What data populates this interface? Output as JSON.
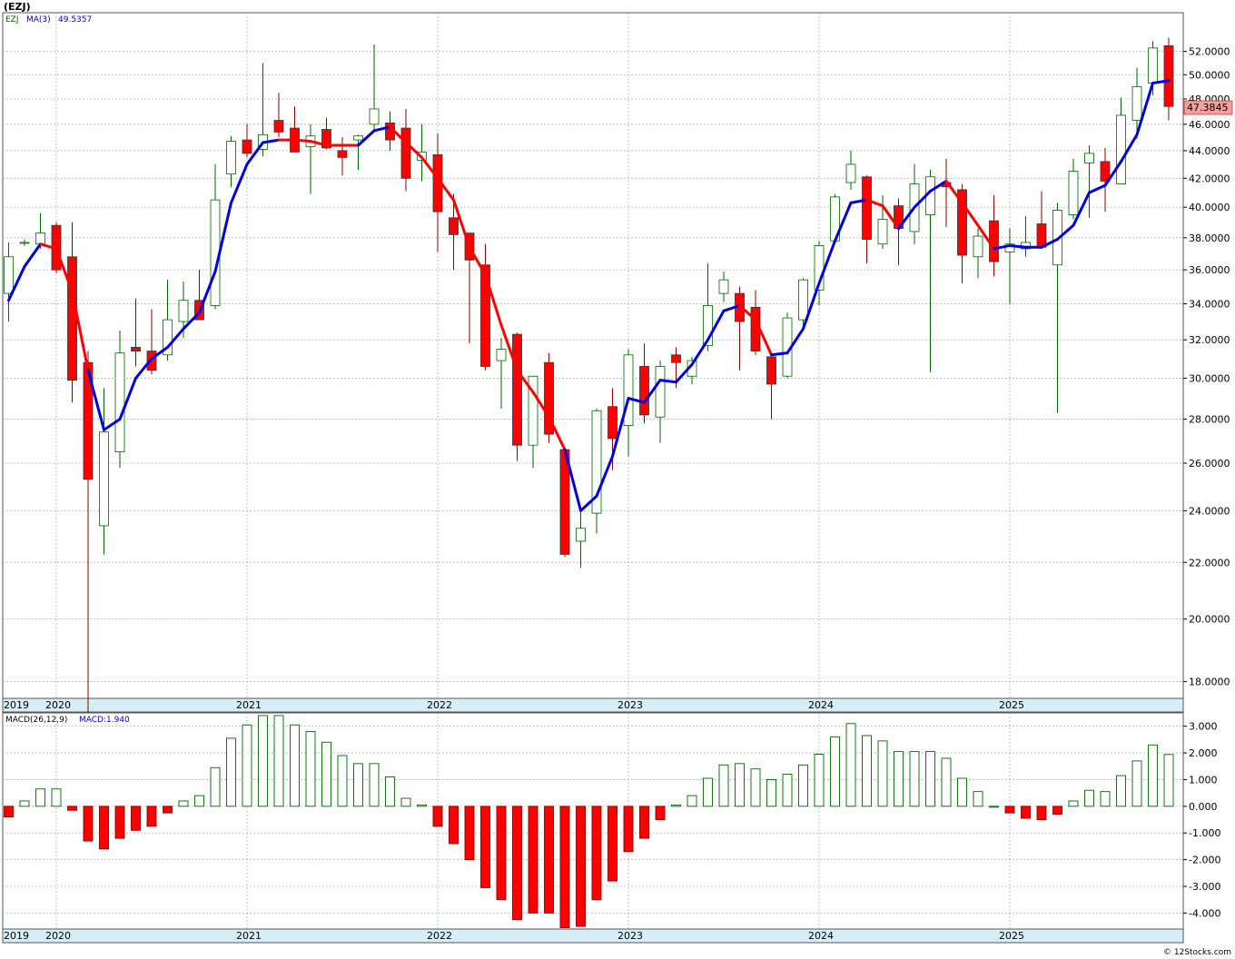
{
  "symbol_header": "(EZJ)",
  "credit": "© 12Stocks.com",
  "colors": {
    "up": "#006400",
    "down": "#ff0000",
    "ma_up": "#0000dd",
    "ma_down": "#ff0000",
    "grid": "#b0b0b0",
    "axis_band": "#d6eef8"
  },
  "chart_data": [
    {
      "type": "candlestick",
      "legend": {
        "ticker": "EZJ",
        "ma_label": "MA(3)",
        "ma_value": "49.5357"
      },
      "y_scale": "log",
      "ylim": [
        17.5,
        55.5
      ],
      "y_ticks": [
        18,
        20,
        22,
        24,
        26,
        28,
        30,
        32,
        34,
        36,
        38,
        40,
        42,
        44,
        46,
        48,
        50,
        52
      ],
      "y_tick_labels": [
        "18.0000",
        "20.0000",
        "22.0000",
        "24.0000",
        "26.0000",
        "28.0000",
        "30.0000",
        "32.0000",
        "34.0000",
        "36.0000",
        "38.0000",
        "40.0000",
        "42.0000",
        "44.0000",
        "46.0000",
        "48.0000",
        "50.0000",
        "52.0000"
      ],
      "last_price_label": "47.3845",
      "last_price": 47.3845,
      "x_labels": [
        "2019",
        "2020",
        "2021",
        "2022",
        "2023",
        "2024",
        "2025"
      ],
      "x_label_months": [
        0,
        3,
        15,
        27,
        39,
        51,
        63
      ],
      "candles": [
        {
          "o": 34.6,
          "h": 37.7,
          "l": 33.0,
          "c": 36.8
        },
        {
          "o": 37.7,
          "h": 37.9,
          "l": 37.5,
          "c": 37.7
        },
        {
          "o": 37.6,
          "h": 39.6,
          "l": 37.3,
          "c": 38.3
        },
        {
          "o": 38.8,
          "h": 39.0,
          "l": 35.8,
          "c": 36.0
        },
        {
          "o": 36.8,
          "h": 39.0,
          "l": 28.8,
          "c": 29.9
        },
        {
          "o": 30.8,
          "h": 31.4,
          "l": 16.6,
          "c": 25.3
        },
        {
          "o": 23.4,
          "h": 29.5,
          "l": 22.3,
          "c": 27.4
        },
        {
          "o": 26.5,
          "h": 32.5,
          "l": 25.8,
          "c": 31.3
        },
        {
          "o": 31.6,
          "h": 34.3,
          "l": 30.6,
          "c": 31.4
        },
        {
          "o": 31.4,
          "h": 33.7,
          "l": 30.2,
          "c": 30.4
        },
        {
          "o": 31.2,
          "h": 35.4,
          "l": 30.9,
          "c": 33.1
        },
        {
          "o": 33.0,
          "h": 35.3,
          "l": 32.1,
          "c": 34.2
        },
        {
          "o": 34.2,
          "h": 36.0,
          "l": 33.2,
          "c": 33.1
        },
        {
          "o": 33.9,
          "h": 43.0,
          "l": 33.7,
          "c": 40.5
        },
        {
          "o": 42.3,
          "h": 45.1,
          "l": 41.4,
          "c": 44.7
        },
        {
          "o": 44.8,
          "h": 46.0,
          "l": 43.5,
          "c": 43.8
        },
        {
          "o": 44.1,
          "h": 51.0,
          "l": 43.6,
          "c": 45.2
        },
        {
          "o": 46.3,
          "h": 48.5,
          "l": 45.0,
          "c": 45.4
        },
        {
          "o": 45.7,
          "h": 47.4,
          "l": 43.9,
          "c": 43.9
        },
        {
          "o": 44.3,
          "h": 46.0,
          "l": 40.9,
          "c": 45.1
        },
        {
          "o": 45.6,
          "h": 46.5,
          "l": 44.1,
          "c": 44.2
        },
        {
          "o": 44.0,
          "h": 45.0,
          "l": 42.2,
          "c": 43.5
        },
        {
          "o": 44.8,
          "h": 45.2,
          "l": 42.6,
          "c": 45.1
        },
        {
          "o": 46.0,
          "h": 52.6,
          "l": 45.6,
          "c": 47.2
        },
        {
          "o": 46.1,
          "h": 47.0,
          "l": 44.0,
          "c": 44.8
        },
        {
          "o": 45.7,
          "h": 47.2,
          "l": 41.1,
          "c": 42.0
        },
        {
          "o": 43.3,
          "h": 46.0,
          "l": 41.8,
          "c": 43.9
        },
        {
          "o": 43.7,
          "h": 45.3,
          "l": 37.1,
          "c": 39.7
        },
        {
          "o": 39.3,
          "h": 40.9,
          "l": 36.0,
          "c": 38.2
        },
        {
          "o": 38.3,
          "h": 38.3,
          "l": 31.8,
          "c": 36.6
        },
        {
          "o": 36.3,
          "h": 37.6,
          "l": 30.4,
          "c": 30.6
        },
        {
          "o": 30.9,
          "h": 32.1,
          "l": 28.5,
          "c": 31.5
        },
        {
          "o": 32.3,
          "h": 32.4,
          "l": 26.1,
          "c": 26.8
        },
        {
          "o": 26.8,
          "h": 30.1,
          "l": 25.8,
          "c": 30.1
        },
        {
          "o": 30.8,
          "h": 31.3,
          "l": 26.9,
          "c": 27.3
        },
        {
          "o": 26.6,
          "h": 26.6,
          "l": 22.2,
          "c": 22.3
        },
        {
          "o": 22.8,
          "h": 24.0,
          "l": 21.8,
          "c": 23.3
        },
        {
          "o": 23.9,
          "h": 28.5,
          "l": 23.1,
          "c": 28.4
        },
        {
          "o": 28.6,
          "h": 29.5,
          "l": 25.7,
          "c": 27.1
        },
        {
          "o": 27.7,
          "h": 31.5,
          "l": 26.3,
          "c": 31.2
        },
        {
          "o": 30.6,
          "h": 31.8,
          "l": 27.8,
          "c": 28.2
        },
        {
          "o": 28.1,
          "h": 30.9,
          "l": 26.9,
          "c": 30.6
        },
        {
          "o": 31.2,
          "h": 31.6,
          "l": 29.5,
          "c": 30.8
        },
        {
          "o": 30.1,
          "h": 31.1,
          "l": 29.7,
          "c": 30.9
        },
        {
          "o": 31.7,
          "h": 36.4,
          "l": 31.4,
          "c": 33.9
        },
        {
          "o": 34.6,
          "h": 35.9,
          "l": 34.1,
          "c": 35.4
        },
        {
          "o": 34.6,
          "h": 35.0,
          "l": 30.4,
          "c": 33.0
        },
        {
          "o": 33.8,
          "h": 34.8,
          "l": 31.2,
          "c": 31.4
        },
        {
          "o": 31.1,
          "h": 31.1,
          "l": 28.0,
          "c": 29.7
        },
        {
          "o": 30.1,
          "h": 33.5,
          "l": 30.0,
          "c": 33.2
        },
        {
          "o": 33.1,
          "h": 35.5,
          "l": 32.6,
          "c": 35.4
        },
        {
          "o": 34.8,
          "h": 37.8,
          "l": 33.9,
          "c": 37.5
        },
        {
          "o": 37.8,
          "h": 40.9,
          "l": 37.6,
          "c": 40.7
        },
        {
          "o": 41.7,
          "h": 44.0,
          "l": 41.2,
          "c": 43.0
        },
        {
          "o": 42.1,
          "h": 42.2,
          "l": 36.4,
          "c": 37.9
        },
        {
          "o": 37.6,
          "h": 40.8,
          "l": 37.3,
          "c": 39.2
        },
        {
          "o": 40.1,
          "h": 40.6,
          "l": 36.3,
          "c": 38.6
        },
        {
          "o": 38.4,
          "h": 43.0,
          "l": 37.6,
          "c": 41.6
        },
        {
          "o": 39.5,
          "h": 42.6,
          "l": 30.3,
          "c": 42.1
        },
        {
          "o": 41.7,
          "h": 43.4,
          "l": 38.7,
          "c": 41.4
        },
        {
          "o": 41.2,
          "h": 41.6,
          "l": 35.2,
          "c": 36.9
        },
        {
          "o": 36.8,
          "h": 38.6,
          "l": 35.5,
          "c": 38.1
        },
        {
          "o": 39.1,
          "h": 40.8,
          "l": 35.6,
          "c": 36.5
        },
        {
          "o": 37.1,
          "h": 38.6,
          "l": 34.0,
          "c": 37.6
        },
        {
          "o": 37.3,
          "h": 39.4,
          "l": 36.8,
          "c": 37.7
        },
        {
          "o": 38.9,
          "h": 41.1,
          "l": 37.3,
          "c": 37.4
        },
        {
          "o": 36.3,
          "h": 40.3,
          "l": 28.3,
          "c": 39.8
        },
        {
          "o": 39.5,
          "h": 43.4,
          "l": 39.2,
          "c": 42.5
        },
        {
          "o": 43.1,
          "h": 44.4,
          "l": 39.3,
          "c": 43.8
        },
        {
          "o": 43.2,
          "h": 44.2,
          "l": 39.7,
          "c": 41.8
        },
        {
          "o": 41.6,
          "h": 48.1,
          "l": 41.6,
          "c": 46.7
        },
        {
          "o": 46.3,
          "h": 50.6,
          "l": 44.9,
          "c": 49.0
        },
        {
          "o": 49.3,
          "h": 52.9,
          "l": 48.3,
          "c": 52.3
        },
        {
          "o": 52.5,
          "h": 53.2,
          "l": 46.3,
          "c": 47.4
        }
      ],
      "ma3": [
        34.2,
        36.2,
        37.6,
        37.3,
        34.7,
        30.4,
        27.5,
        28.0,
        30.0,
        31.0,
        31.6,
        32.6,
        33.5,
        35.9,
        40.3,
        43.0,
        44.6,
        44.8,
        44.8,
        44.7,
        44.4,
        44.4,
        44.4,
        45.5,
        45.8,
        44.6,
        43.5,
        42.0,
        40.5,
        37.4,
        35.7,
        32.8,
        30.4,
        29.3,
        28.1,
        26.6,
        24.0,
        24.6,
        26.3,
        29.0,
        28.8,
        29.9,
        29.8,
        30.7,
        32.0,
        33.6,
        33.9,
        33.1,
        31.2,
        31.3,
        32.6,
        35.2,
        37.8,
        40.3,
        40.5,
        40.1,
        38.6,
        40.0,
        41.1,
        41.8,
        40.3,
        38.8,
        37.3,
        37.5,
        37.4,
        37.4,
        37.9,
        38.8,
        41.0,
        41.5,
        43.2,
        45.2,
        49.3,
        49.5
      ],
      "ma3_trend": [
        "u",
        "u",
        "u",
        "d",
        "d",
        "d",
        "u",
        "u",
        "u",
        "u",
        "u",
        "u",
        "u",
        "u",
        "u",
        "u",
        "u",
        "u",
        "d",
        "d",
        "d",
        "d",
        "d",
        "u",
        "u",
        "d",
        "d",
        "d",
        "d",
        "d",
        "d",
        "d",
        "d",
        "d",
        "d",
        "d",
        "u",
        "u",
        "u",
        "u",
        "u",
        "u",
        "u",
        "u",
        "u",
        "u",
        "u",
        "d",
        "d",
        "u",
        "u",
        "u",
        "u",
        "u",
        "u",
        "d",
        "d",
        "u",
        "u",
        "u",
        "d",
        "d",
        "d",
        "u",
        "u",
        "u",
        "u",
        "u",
        "u",
        "u",
        "u",
        "u",
        "u",
        "u"
      ]
    },
    {
      "type": "bar",
      "legend": {
        "label": "MACD(26,12,9)",
        "value_label": "MACD:1.940"
      },
      "ylim": [
        -4.6,
        3.5
      ],
      "y_ticks": [
        -4,
        -3,
        -2,
        -1,
        0,
        1,
        2,
        3
      ],
      "y_tick_labels": [
        "-4.000",
        "-3.000",
        "-2.000",
        "-1.000",
        "0.000",
        "1.000",
        "2.000",
        "3.000"
      ],
      "x_labels": [
        "2019",
        "2020",
        "2021",
        "2022",
        "2023",
        "2024",
        "2025"
      ],
      "values": [
        -0.4,
        0.2,
        0.65,
        0.65,
        -0.15,
        -1.3,
        -1.6,
        -1.2,
        -0.9,
        -0.75,
        -0.25,
        0.2,
        0.4,
        1.45,
        2.55,
        3.05,
        3.4,
        3.4,
        3.05,
        2.8,
        2.4,
        1.9,
        1.6,
        1.6,
        1.1,
        0.3,
        0.05,
        -0.75,
        -1.4,
        -2.0,
        -3.05,
        -3.5,
        -4.25,
        -4.0,
        -4.0,
        -4.55,
        -4.5,
        -3.5,
        -2.8,
        -1.7,
        -1.2,
        -0.5,
        0.05,
        0.4,
        1.05,
        1.55,
        1.6,
        1.4,
        1.0,
        1.2,
        1.55,
        1.95,
        2.6,
        3.1,
        2.65,
        2.45,
        2.05,
        2.05,
        2.05,
        1.8,
        1.05,
        0.55,
        0.0,
        -0.25,
        -0.45,
        -0.5,
        -0.3,
        0.2,
        0.6,
        0.55,
        1.15,
        1.7,
        2.3,
        1.94
      ]
    }
  ]
}
